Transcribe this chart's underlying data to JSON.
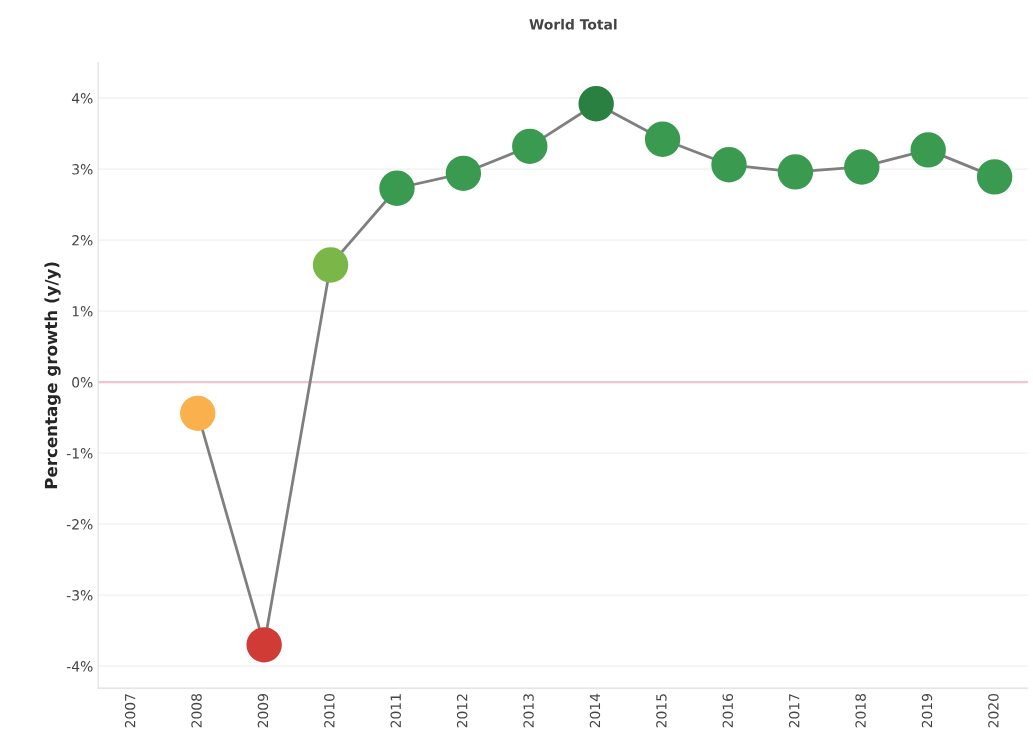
{
  "chart_data": {
    "type": "line",
    "title": "World Total",
    "ylabel": "Percentage growth (y/y)",
    "categories": [
      "2007",
      "2008",
      "2009",
      "2010",
      "2011",
      "2012",
      "2013",
      "2014",
      "2015",
      "2016",
      "2017",
      "2018",
      "2019",
      "2020"
    ],
    "series": [
      {
        "color": "#7f7f7f",
        "values": [
          null,
          -0.44,
          -3.7,
          1.65,
          2.73,
          2.94,
          3.32,
          3.92,
          3.42,
          3.06,
          2.96,
          3.03,
          3.27,
          2.89
        ],
        "colors": [
          null,
          "#fbb04e",
          "#d13b35",
          "#7ab648",
          "#3a9a4f",
          "#3a9a4f",
          "#3a9a4f",
          "#2a8040",
          "#3a9a4f",
          "#3a9a4f",
          "#3a9a4f",
          "#3a9a4f",
          "#3a9a4f",
          "#3a9a4f"
        ]
      }
    ],
    "marker": "circle",
    "line_style": "solid",
    "ylim": [
      -4.31,
      4.5
    ],
    "yticks": [
      {
        "value": 4,
        "label": "4%"
      },
      {
        "value": 3,
        "label": "3%"
      },
      {
        "value": 2,
        "label": "2%"
      },
      {
        "value": 1,
        "label": "1%"
      },
      {
        "value": 0,
        "label": "0%"
      },
      {
        "value": -1,
        "label": "-1%"
      },
      {
        "value": -2,
        "label": "-2%"
      },
      {
        "value": -3,
        "label": "-3%"
      },
      {
        "value": -4,
        "label": "-4%"
      }
    ],
    "grid": "y",
    "ref_lines": [
      {
        "axis": "y",
        "value": 0,
        "color": "#f2c4cf"
      }
    ]
  }
}
